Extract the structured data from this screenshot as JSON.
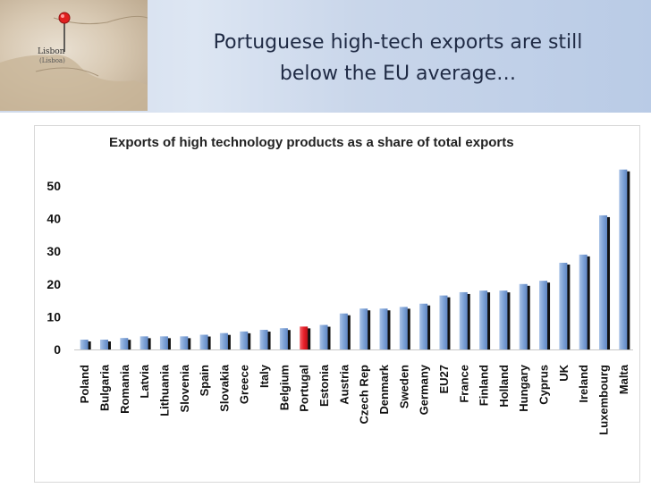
{
  "slide": {
    "title_line1": "Portuguese high-tech exports are still",
    "title_line2": "below the EU average…"
  },
  "map": {
    "city_label": "Lisbon",
    "city_sublabel": "(Lisboa)"
  },
  "colors": {
    "bar_blue": "#7fa3d6",
    "bar_highlight": "#e8202a",
    "bar_shadow": "#111111"
  },
  "chart_data": {
    "type": "bar",
    "title": "Exports of high technology products as a share of total exports",
    "xlabel": "",
    "ylabel": "",
    "ylim": [
      0,
      55
    ],
    "yticks": [
      0,
      10,
      20,
      30,
      40,
      50
    ],
    "grid": false,
    "legend": "none",
    "categories": [
      "Poland",
      "Bulgaria",
      "Romania",
      "Latvia",
      "Lithuania",
      "Slovenia",
      "Spain",
      "Slovakia",
      "Greece",
      "Italy",
      "Belgium",
      "Portugal",
      "Estonia",
      "Austria",
      "Czech Rep",
      "Denmark",
      "Sweden",
      "Germany",
      "EU27",
      "France",
      "Finland",
      "Holland",
      "Hungary",
      "Cyprus",
      "UK",
      "Ireland",
      "Luxembourg",
      "Malta"
    ],
    "values": [
      3,
      3,
      3.5,
      4,
      4,
      4,
      4.5,
      5,
      5.5,
      6,
      6.5,
      7,
      7.5,
      11,
      12.5,
      12.5,
      13,
      14,
      16.5,
      17.5,
      18,
      18,
      20,
      21,
      26.5,
      29,
      41,
      55
    ],
    "highlight": "Portugal"
  }
}
